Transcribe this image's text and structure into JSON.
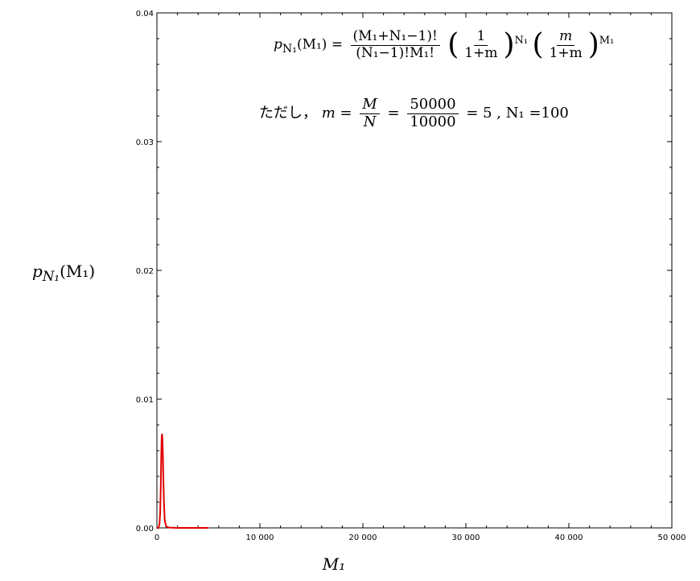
{
  "chart_data": {
    "type": "line",
    "title": "",
    "xlabel": "M₁",
    "ylabel": "p_N₁(M₁)",
    "xlim": [
      0,
      50000
    ],
    "ylim": [
      0,
      0.04
    ],
    "xticks": [
      0,
      10000,
      20000,
      30000,
      40000,
      50000
    ],
    "xtick_labels": [
      "0",
      "10 000",
      "20 000",
      "30 000",
      "40 000",
      "50 000"
    ],
    "yticks": [
      0,
      0.01,
      0.02,
      0.03,
      0.04
    ],
    "ytick_labels": [
      "0.00",
      "0.01",
      "0.02",
      "0.03",
      "0.04"
    ],
    "grid": false,
    "series": [
      {
        "color": "#e00000",
        "x": [
          0,
          150,
          250,
          320,
          380,
          420,
          460,
          500,
          540,
          580,
          620,
          680,
          760,
          900,
          1200,
          2000,
          3000,
          5000
        ],
        "y": [
          0,
          0.0,
          0.0003,
          0.0012,
          0.0033,
          0.0055,
          0.0069,
          0.0073,
          0.0069,
          0.0057,
          0.0041,
          0.0021,
          0.0006,
          0.0001,
          2e-05,
          0.0,
          0.0,
          0.0
        ]
      }
    ]
  },
  "annotation": {
    "lhs": "p",
    "lhs_sub": "N₁",
    "lhs_arg": "(M₁)",
    "equals": "=",
    "frac1_num": "(M₁+N₁−1)!",
    "frac1_den": "(N₁−1)!M₁!",
    "frac2_num": "1",
    "frac2_den": "1+m",
    "exp1": "N₁",
    "frac3_num": "m",
    "frac3_den": "1+m",
    "exp2": "M₁",
    "note_prefix": "ただし，",
    "m_var": "m",
    "frac4_num": "M",
    "frac4_den": "N",
    "frac5_num": "50000",
    "frac5_den": "10000",
    "result": "= 5 ,",
    "n1": "N₁ =100"
  },
  "colors": {
    "series": "#e00000",
    "axis": "#000000"
  }
}
